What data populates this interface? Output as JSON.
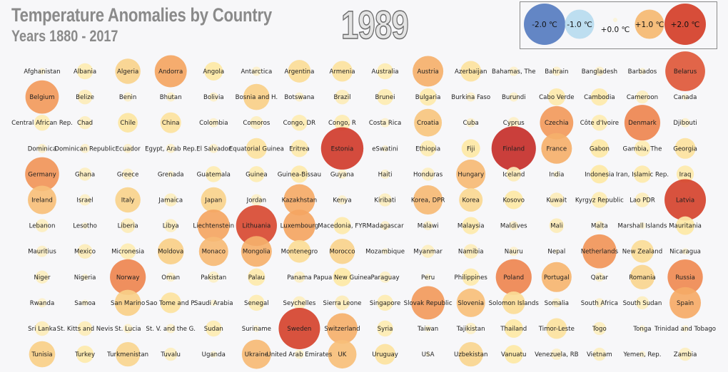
{
  "chart_data": {
    "type": "scatter",
    "subtype": "bubble-grid",
    "title": "Temperature Anomalies by Country",
    "subtitle": "Years 1880 - 2017",
    "year": "1989",
    "unit": "°C",
    "legend": {
      "placement": "top-right",
      "entries": [
        {
          "label": "-2.0 ℃",
          "value": -2.0
        },
        {
          "label": "-1.0 ℃",
          "value": -1.0
        },
        {
          "label": "+0.0 ℃",
          "value": 0.0
        },
        {
          "label": "+1.0 ℃",
          "value": 1.0
        },
        {
          "label": "+2.0 ℃",
          "value": 2.0
        }
      ]
    },
    "color_scale": {
      "-2": "#5b7fc2",
      "-1": "#b9dcef",
      "0": "#fbf3d8",
      "1": "#f6ad6a",
      "2": "#d4402d"
    },
    "countries": [
      [
        "Afghanistan",
        0.05
      ],
      [
        "Albania",
        0.3
      ],
      [
        "Algeria",
        0.75
      ],
      [
        "Andorra",
        1.2
      ],
      [
        "Angola",
        0.4
      ],
      [
        "Antarctica",
        0.1
      ],
      [
        "Argentina",
        0.6
      ],
      [
        "Armenia",
        0.5
      ],
      [
        "Australia",
        0.3
      ],
      [
        "Austria",
        1.1
      ],
      [
        "Azerbaijan",
        0.5
      ],
      [
        "Bahamas, The",
        0.1
      ],
      [
        "Bahrain",
        0.1
      ],
      [
        "Bangladesh",
        0.1
      ],
      [
        "Barbados",
        0.05
      ],
      [
        "Belarus",
        1.85
      ],
      [
        "Belgium",
        1.3
      ],
      [
        "Belize",
        0.25
      ],
      [
        "Benin",
        0.1
      ],
      [
        "Bhutan",
        0.1
      ],
      [
        "Bolivia",
        0.1
      ],
      [
        "Bosnia and H.",
        0.8
      ],
      [
        "Botswana",
        0.1
      ],
      [
        "Brazil",
        0.25
      ],
      [
        "Brunei",
        0.3
      ],
      [
        "Bulgaria",
        0.35
      ],
      [
        "Burkina Faso",
        0.1
      ],
      [
        "Burundi",
        0.1
      ],
      [
        "Cabo Verde",
        0.35
      ],
      [
        "Cambodia",
        0.35
      ],
      [
        "Cameroon",
        0.2
      ],
      [
        "Canada",
        0.05
      ],
      [
        "Central African Rep.",
        0.3
      ],
      [
        "Chad",
        0.2
      ],
      [
        "Chile",
        0.45
      ],
      [
        "China",
        0.5
      ],
      [
        "Colombia",
        0.1
      ],
      [
        "Comoros",
        0.2
      ],
      [
        "Congo, DR",
        0.3
      ],
      [
        "Congo, R",
        0.3
      ],
      [
        "Costa Rica",
        0.1
      ],
      [
        "Croatia",
        0.9
      ],
      [
        "Cuba",
        0.1
      ],
      [
        "Cyprus",
        0.15
      ],
      [
        "Czechia",
        1.3
      ],
      [
        "Côte d'Ivoire",
        0.3
      ],
      [
        "Denmark",
        1.5
      ],
      [
        "Djibouti",
        0.1
      ],
      [
        "Dominica",
        0.1
      ],
      [
        "Dominican Republic",
        0.1
      ],
      [
        "Ecuador",
        0.1
      ],
      [
        "Egypt, Arab Rep.",
        0.1
      ],
      [
        "El Salvador",
        0.1
      ],
      [
        "Equatorial Guinea",
        0.5
      ],
      [
        "Eritrea",
        0.35
      ],
      [
        "Estonia",
        2.1
      ],
      [
        "eSwatini",
        0.05
      ],
      [
        "Ethiopia",
        0.3
      ],
      [
        "Fiji",
        0.4
      ],
      [
        "Finland",
        2.3
      ],
      [
        "France",
        1.1
      ],
      [
        "Gabon",
        0.4
      ],
      [
        "Gambia, The",
        0.3
      ],
      [
        "Georgia",
        0.5
      ],
      [
        "Germany",
        1.35
      ],
      [
        "Ghana",
        0.2
      ],
      [
        "Greece",
        0.15
      ],
      [
        "Grenada",
        0.05
      ],
      [
        "Guatemala",
        0.3
      ],
      [
        "Guinea",
        0.3
      ],
      [
        "Guinea-Bissau",
        0.35
      ],
      [
        "Guyana",
        0.1
      ],
      [
        "Haiti",
        0.1
      ],
      [
        "Honduras",
        0.2
      ],
      [
        "Hungary",
        1.0
      ],
      [
        "Iceland",
        0.25
      ],
      [
        "India",
        0.05
      ],
      [
        "Indonesia",
        0.4
      ],
      [
        "Iran, Islamic Rep.",
        0.35
      ],
      [
        "Iraq",
        0.35
      ],
      [
        "Ireland",
        0.95
      ],
      [
        "Israel",
        0.15
      ],
      [
        "Italy",
        0.75
      ],
      [
        "Jamaica",
        0.2
      ],
      [
        "Japan",
        0.75
      ],
      [
        "Jordan",
        0.15
      ],
      [
        "Kazakhstan",
        1.15
      ],
      [
        "Kenya",
        0.1
      ],
      [
        "Kiribati",
        0.2
      ],
      [
        "Korea, DPR",
        1.0
      ],
      [
        "Korea",
        0.65
      ],
      [
        "Kosovo",
        0.4
      ],
      [
        "Kuwait",
        0.25
      ],
      [
        "Kyrgyz Republic",
        0.3
      ],
      [
        "Lao PDR",
        0.25
      ],
      [
        "Latvia",
        2.0
      ],
      [
        "Lebanon",
        0.2
      ],
      [
        "Lesotho",
        0.05
      ],
      [
        "Liberia",
        0.25
      ],
      [
        "Libya",
        0.2
      ],
      [
        "Liechtenstein",
        1.2
      ],
      [
        "Lithuania",
        1.95
      ],
      [
        "Luxembourg",
        1.2
      ],
      [
        "Macedonia, FYR",
        0.35
      ],
      [
        "Madagascar",
        0.1
      ],
      [
        "Malawi",
        0.1
      ],
      [
        "Malaysia",
        0.35
      ],
      [
        "Maldives",
        0.1
      ],
      [
        "Mali",
        0.25
      ],
      [
        "Malta",
        0.1
      ],
      [
        "Marshall Islands",
        0.05
      ],
      [
        "Mauritania",
        0.4
      ],
      [
        "Mauritius",
        0.15
      ],
      [
        "Mexico",
        0.25
      ],
      [
        "Micronesia",
        0.3
      ],
      [
        "Moldova",
        0.8
      ],
      [
        "Monaco",
        1.0
      ],
      [
        "Mongolia",
        1.1
      ],
      [
        "Montenegro",
        0.6
      ],
      [
        "Morocco",
        0.75
      ],
      [
        "Mozambique",
        0.05
      ],
      [
        "Myanmar",
        0.2
      ],
      [
        "Namibia",
        0.25
      ],
      [
        "Nauru",
        0.1
      ],
      [
        "Nepal",
        0.02
      ],
      [
        "Netherlands",
        1.35
      ],
      [
        "New Zealand",
        0.6
      ],
      [
        "Nicaragua",
        0.05
      ],
      [
        "Niger",
        0.2
      ],
      [
        "Nigeria",
        0.05
      ],
      [
        "Norway",
        1.5
      ],
      [
        "Oman",
        0.1
      ],
      [
        "Pakistan",
        0.15
      ],
      [
        "Palau",
        0.35
      ],
      [
        "Panama",
        0.15
      ],
      [
        "Papua New Guinea",
        0.4
      ],
      [
        "Paraguay",
        0.15
      ],
      [
        "Peru",
        0.05
      ],
      [
        "Philippines",
        0.35
      ],
      [
        "Poland",
        1.5
      ],
      [
        "Portugal",
        1.05
      ],
      [
        "Qatar",
        0.1
      ],
      [
        "Romania",
        0.7
      ],
      [
        "Russia",
        1.45
      ],
      [
        "Rwanda",
        0.1
      ],
      [
        "Samoa",
        0.05
      ],
      [
        "San Marino",
        0.8
      ],
      [
        "Sao Tome and P.",
        0.5
      ],
      [
        "Saudi Arabia",
        0.05
      ],
      [
        "Senegal",
        0.3
      ],
      [
        "Seychelles",
        0.2
      ],
      [
        "Sierra Leone",
        0.25
      ],
      [
        "Singapore",
        0.3
      ],
      [
        "Slovak Republic",
        1.3
      ],
      [
        "Slovenia",
        0.95
      ],
      [
        "Solomon Islands",
        0.6
      ],
      [
        "Somalia",
        0.1
      ],
      [
        "South Africa",
        0.1
      ],
      [
        "South Sudan",
        0.2
      ],
      [
        "Spain",
        1.15
      ],
      [
        "Sri Lanka",
        0.25
      ],
      [
        "St. Kitts and Nevis",
        0.25
      ],
      [
        "St. Lucia",
        0.1
      ],
      [
        "St. V. and the G.",
        0.1
      ],
      [
        "Sudan",
        0.3
      ],
      [
        "Suriname",
        0.05
      ],
      [
        "Sweden",
        2.0
      ],
      [
        "Switzerland",
        1.1
      ],
      [
        "Syria",
        0.3
      ],
      [
        "Taiwan",
        0.05
      ],
      [
        "Tajikistan",
        0.15
      ],
      [
        "Thailand",
        0.4
      ],
      [
        "Timor-Leste",
        0.5
      ],
      [
        "Togo",
        0.2
      ],
      [
        "Tonga",
        0.05
      ],
      [
        "Trinidad and Tobago",
        0.05
      ],
      [
        "Tunisia",
        0.8
      ],
      [
        "Turkey",
        0.35
      ],
      [
        "Turkmenistan",
        0.7
      ],
      [
        "Tuvalu",
        0.2
      ],
      [
        "Uganda",
        0.05
      ],
      [
        "Ukraine",
        1.0
      ],
      [
        "United Arab Emirates",
        0.1
      ],
      [
        "UK",
        0.95
      ],
      [
        "Uruguay",
        0.5
      ],
      [
        "USA",
        0.02
      ],
      [
        "Uzbekistan",
        0.7
      ],
      [
        "Vanuatu",
        0.4
      ],
      [
        "Venezuela, RB",
        0.15
      ],
      [
        "Vietnam",
        0.2
      ],
      [
        "Yemen, Rep.",
        0.05
      ],
      [
        "Zambia",
        0.2
      ]
    ]
  }
}
